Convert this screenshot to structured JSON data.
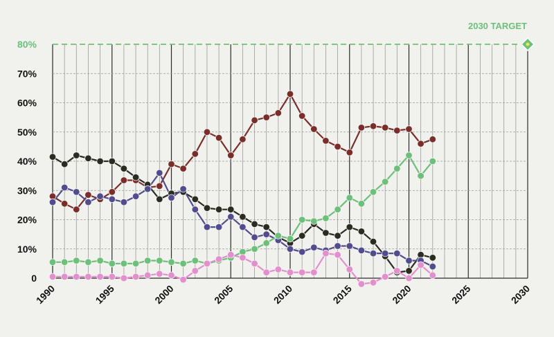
{
  "chart_data": {
    "type": "line",
    "xlim": [
      1990,
      2030
    ],
    "ylim": [
      0,
      80
    ],
    "x_ticks": [
      "1990",
      "1995",
      "2000",
      "2005",
      "2010",
      "2015",
      "2020",
      "2025",
      "2030"
    ],
    "y_ticks": [
      "0",
      "10%",
      "20%",
      "30%",
      "40%",
      "50%",
      "60%",
      "70%",
      "80%"
    ],
    "grid": true,
    "target": {
      "label": "2030 TARGET",
      "year": 2030,
      "value": 80,
      "color": "#6cc07a"
    },
    "x": [
      1990,
      1991,
      1992,
      1993,
      1994,
      1995,
      1996,
      1997,
      1998,
      1999,
      2000,
      2001,
      2002,
      2003,
      2004,
      2005,
      2006,
      2007,
      2008,
      2009,
      2010,
      2011,
      2012,
      2013,
      2014,
      2015,
      2016,
      2017,
      2018,
      2019,
      2020,
      2021,
      2022
    ],
    "series": [
      {
        "color": "#7a2e2a",
        "values": [
          28,
          25.5,
          23.5,
          28.5,
          27,
          29.5,
          33.5,
          33.5,
          31,
          31.5,
          39,
          37.5,
          42.5,
          50,
          48,
          42,
          47.5,
          54,
          55,
          56.5,
          63,
          55.5,
          51,
          47,
          45,
          43,
          51.5,
          52,
          51.5,
          50.5,
          51,
          46,
          47.5
        ]
      },
      {
        "color": "#2b2b22",
        "values": [
          41.5,
          39,
          42,
          41,
          40,
          40,
          37.5,
          34.5,
          32,
          27,
          29,
          29.5,
          27,
          24,
          23.5,
          23.5,
          21,
          18.5,
          17.5,
          14,
          12,
          14.5,
          18.5,
          15.5,
          14.5,
          17.5,
          16,
          12.5,
          7.5,
          2,
          2.5,
          8,
          7
        ]
      },
      {
        "color": "#514c8e",
        "values": [
          26,
          31,
          29.5,
          26,
          28,
          27,
          26,
          28,
          30.5,
          36,
          27.5,
          30.5,
          23.5,
          17.5,
          17.5,
          21,
          17.5,
          14,
          15,
          13,
          10,
          9,
          10.5,
          9.5,
          11,
          11,
          9.5,
          8.5,
          8.5,
          8.5,
          6,
          6,
          4
        ]
      },
      {
        "color": "#6cc07a",
        "values": [
          5.5,
          5.5,
          6,
          5.5,
          6,
          5,
          5,
          5,
          6,
          6,
          5.5,
          5,
          6,
          5,
          6,
          7,
          9,
          10,
          12,
          14.5,
          13.5,
          20,
          19.5,
          20.5,
          23.5,
          27.5,
          25.5,
          29.5,
          33,
          37.5,
          42,
          35,
          40
        ]
      },
      {
        "color": "#e38fcd",
        "values": [
          0.5,
          0.5,
          0.5,
          0.5,
          0.5,
          0.5,
          0,
          0.5,
          1,
          1.5,
          1,
          -0.5,
          2.5,
          5,
          6.5,
          8,
          7,
          5,
          2,
          3,
          2,
          2,
          2,
          8.5,
          8,
          3,
          -2,
          -1.5,
          0.5,
          2.5,
          0,
          4.5,
          1
        ]
      }
    ]
  }
}
